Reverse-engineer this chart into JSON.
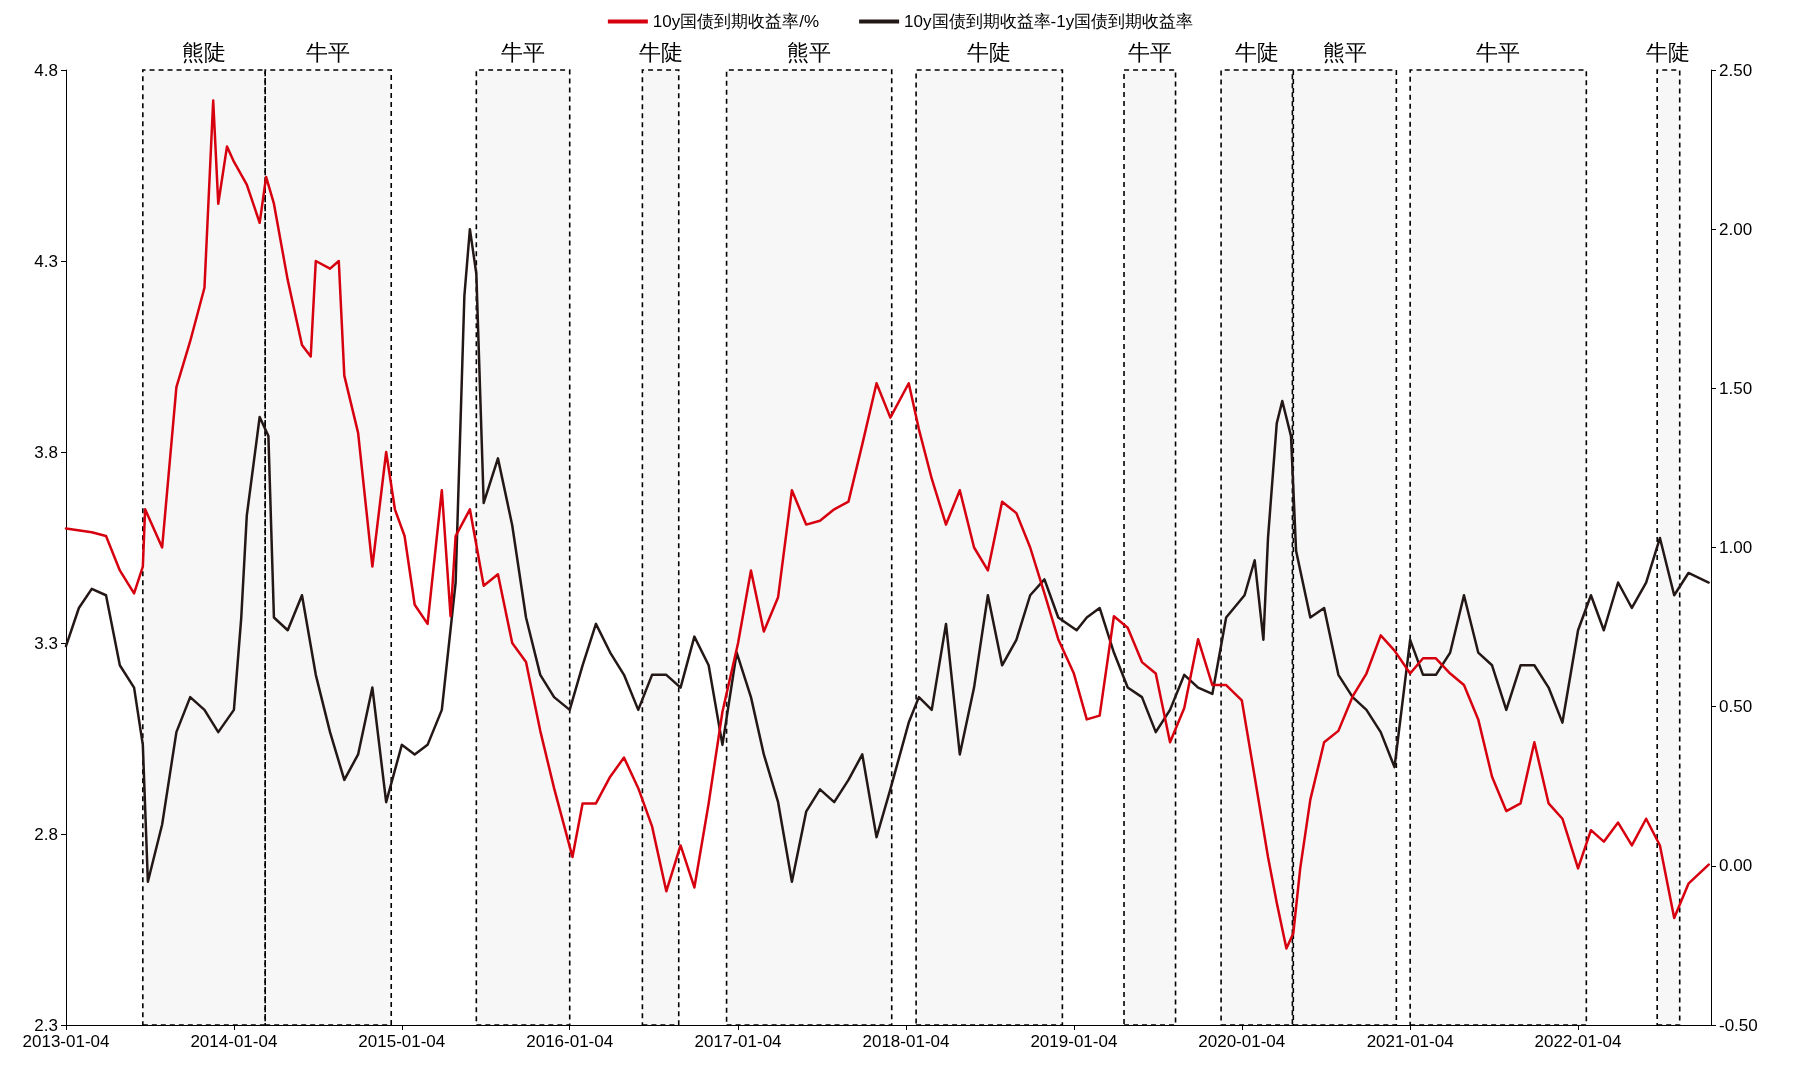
{
  "chart_data": {
    "type": "line",
    "legend": "top",
    "grid": false,
    "marker": "none",
    "line_style": "solid",
    "xlim": [
      "2013-01-04",
      "2022-10-20"
    ],
    "xticks": [
      "2013-01-04",
      "2014-01-04",
      "2015-01-04",
      "2016-01-04",
      "2017-01-04",
      "2018-01-04",
      "2019-01-04",
      "2020-01-04",
      "2021-01-04",
      "2022-01-04"
    ],
    "ylim": [
      2.3,
      4.8
    ],
    "yticks": [
      2.3,
      2.8,
      3.3,
      3.8,
      4.3,
      4.8
    ],
    "y2lim": [
      -0.5,
      2.5
    ],
    "y2ticks": [
      {
        "value": -0.5,
        "label": "-0.50"
      },
      {
        "value": 0,
        "label": "0.00"
      },
      {
        "value": 0.5,
        "label": "0.50"
      },
      {
        "value": 1,
        "label": "1.00"
      },
      {
        "value": 1.5,
        "label": "1.50"
      },
      {
        "value": 2,
        "label": "2.00"
      },
      {
        "value": 2.5,
        "label": "2.50"
      }
    ],
    "bands": [
      {
        "axis": "x",
        "from": "2013-06-20",
        "to": "2014-03-13",
        "label": "熊陡"
      },
      {
        "axis": "x",
        "from": "2014-03-13",
        "to": "2014-12-12",
        "label": "牛平"
      },
      {
        "axis": "x",
        "from": "2015-06-15",
        "to": "2016-01-04",
        "label": "牛平"
      },
      {
        "axis": "x",
        "from": "2016-06-10",
        "to": "2016-08-28",
        "label": "牛陡"
      },
      {
        "axis": "x",
        "from": "2016-12-10",
        "to": "2017-12-04",
        "label": "熊平"
      },
      {
        "axis": "x",
        "from": "2018-01-26",
        "to": "2018-12-10",
        "label": "牛陡"
      },
      {
        "axis": "x",
        "from": "2019-04-23",
        "to": "2019-08-13",
        "label": "牛平"
      },
      {
        "axis": "x",
        "from": "2019-11-20",
        "to": "2020-04-23",
        "label": "牛陡"
      },
      {
        "axis": "x",
        "from": "2020-04-25",
        "to": "2020-12-05",
        "label": "熊平"
      },
      {
        "axis": "x",
        "from": "2021-01-04",
        "to": "2022-01-22",
        "label": "牛平"
      },
      {
        "axis": "x",
        "from": "2022-06-25",
        "to": "2022-08-13",
        "label": "牛陡"
      }
    ],
    "series": [
      {
        "name": "10y国债到期收益率/%",
        "color": "#d7000f",
        "x": [
          "2013-01-04",
          "2013-03-01",
          "2013-04-01",
          "2013-05-01",
          "2013-06-01",
          "2013-06-20",
          "2013-06-25",
          "2013-08-01",
          "2013-09-01",
          "2013-10-01",
          "2013-11-01",
          "2013-11-20",
          "2013-12-01",
          "2013-12-20",
          "2014-01-04",
          "2014-02-01",
          "2014-03-01",
          "2014-03-15",
          "2014-04-01",
          "2014-05-01",
          "2014-06-01",
          "2014-06-20",
          "2014-07-01",
          "2014-08-01",
          "2014-08-20",
          "2014-09-01",
          "2014-10-01",
          "2014-11-01",
          "2014-12-01",
          "2014-12-20",
          "2015-01-10",
          "2015-02-01",
          "2015-03-01",
          "2015-04-01",
          "2015-04-20",
          "2015-05-01",
          "2015-06-01",
          "2015-07-01",
          "2015-08-01",
          "2015-09-01",
          "2015-10-01",
          "2015-11-01",
          "2015-12-01",
          "2016-01-10",
          "2016-02-01",
          "2016-03-01",
          "2016-04-01",
          "2016-05-01",
          "2016-06-01",
          "2016-07-01",
          "2016-08-01",
          "2016-09-01",
          "2016-10-01",
          "2016-11-01",
          "2016-12-01",
          "2017-01-04",
          "2017-02-01",
          "2017-03-01",
          "2017-04-01",
          "2017-05-01",
          "2017-06-01",
          "2017-07-01",
          "2017-08-01",
          "2017-09-01",
          "2017-10-01",
          "2017-11-01",
          "2017-12-01",
          "2018-01-10",
          "2018-02-01",
          "2018-03-01",
          "2018-04-01",
          "2018-05-01",
          "2018-06-01",
          "2018-07-01",
          "2018-08-01",
          "2018-09-01",
          "2018-10-01",
          "2018-11-01",
          "2018-12-01",
          "2019-01-04",
          "2019-02-01",
          "2019-03-01",
          "2019-04-01",
          "2019-05-01",
          "2019-06-01",
          "2019-07-01",
          "2019-08-01",
          "2019-09-01",
          "2019-10-01",
          "2019-11-01",
          "2019-12-01",
          "2020-01-04",
          "2020-02-01",
          "2020-03-01",
          "2020-03-20",
          "2020-04-10",
          "2020-04-25",
          "2020-05-10",
          "2020-06-01",
          "2020-07-01",
          "2020-08-01",
          "2020-09-01",
          "2020-10-01",
          "2020-11-01",
          "2020-12-01",
          "2021-01-04",
          "2021-02-01",
          "2021-03-01",
          "2021-04-01",
          "2021-05-01",
          "2021-06-01",
          "2021-07-01",
          "2021-08-01",
          "2021-09-01",
          "2021-10-01",
          "2021-11-01",
          "2021-12-01",
          "2022-01-04",
          "2022-02-01",
          "2022-03-01",
          "2022-04-01",
          "2022-05-01",
          "2022-06-01",
          "2022-07-01",
          "2022-08-01",
          "2022-09-01",
          "2022-10-15"
        ],
        "values": [
          3.6,
          3.59,
          3.58,
          3.49,
          3.43,
          3.5,
          3.65,
          3.55,
          3.97,
          4.09,
          4.23,
          4.72,
          4.45,
          4.6,
          4.56,
          4.5,
          4.4,
          4.52,
          4.45,
          4.25,
          4.08,
          4.05,
          4.3,
          4.28,
          4.3,
          4.0,
          3.85,
          3.5,
          3.8,
          3.65,
          3.58,
          3.4,
          3.35,
          3.7,
          3.37,
          3.58,
          3.65,
          3.45,
          3.48,
          3.3,
          3.25,
          3.07,
          2.92,
          2.74,
          2.88,
          2.88,
          2.95,
          3.0,
          2.92,
          2.82,
          2.65,
          2.77,
          2.66,
          2.88,
          3.12,
          3.3,
          3.49,
          3.33,
          3.42,
          3.7,
          3.61,
          3.62,
          3.65,
          3.67,
          3.82,
          3.98,
          3.89,
          3.98,
          3.86,
          3.73,
          3.61,
          3.7,
          3.55,
          3.49,
          3.67,
          3.64,
          3.55,
          3.43,
          3.31,
          3.22,
          3.1,
          3.11,
          3.37,
          3.34,
          3.25,
          3.22,
          3.04,
          3.13,
          3.31,
          3.19,
          3.19,
          3.15,
          2.95,
          2.74,
          2.62,
          2.5,
          2.54,
          2.71,
          2.89,
          3.04,
          3.07,
          3.16,
          3.22,
          3.32,
          3.28,
          3.22,
          3.26,
          3.26,
          3.22,
          3.19,
          3.1,
          2.95,
          2.86,
          2.88,
          3.04,
          2.88,
          2.84,
          2.71,
          2.81,
          2.78,
          2.83,
          2.77,
          2.84,
          2.77,
          2.58,
          2.67,
          2.72
        ]
      },
      {
        "name": "10y国债到期收益率-1y国债到期收益率",
        "color": "#231815",
        "axis": "y2",
        "x": [
          "2013-01-04",
          "2013-02-01",
          "2013-03-01",
          "2013-04-01",
          "2013-05-01",
          "2013-06-01",
          "2013-06-20",
          "2013-07-01",
          "2013-08-01",
          "2013-09-01",
          "2013-10-01",
          "2013-11-01",
          "2013-12-01",
          "2014-01-04",
          "2014-01-20",
          "2014-02-01",
          "2014-03-01",
          "2014-03-20",
          "2014-04-01",
          "2014-05-01",
          "2014-06-01",
          "2014-07-01",
          "2014-08-01",
          "2014-09-01",
          "2014-10-01",
          "2014-11-01",
          "2014-12-01",
          "2015-01-04",
          "2015-02-01",
          "2015-03-01",
          "2015-04-01",
          "2015-05-01",
          "2015-05-20",
          "2015-06-01",
          "2015-06-15",
          "2015-07-01",
          "2015-08-01",
          "2015-09-01",
          "2015-10-01",
          "2015-11-01",
          "2015-12-01",
          "2016-01-04",
          "2016-02-01",
          "2016-03-01",
          "2016-04-01",
          "2016-05-01",
          "2016-06-01",
          "2016-07-01",
          "2016-08-01",
          "2016-09-01",
          "2016-10-01",
          "2016-11-01",
          "2016-12-01",
          "2017-01-01",
          "2017-02-01",
          "2017-03-01",
          "2017-04-01",
          "2017-05-01",
          "2017-06-01",
          "2017-07-01",
          "2017-08-01",
          "2017-09-01",
          "2017-10-01",
          "2017-11-01",
          "2017-12-01",
          "2018-01-10",
          "2018-02-01",
          "2018-03-01",
          "2018-04-01",
          "2018-05-01",
          "2018-06-01",
          "2018-07-01",
          "2018-08-01",
          "2018-09-01",
          "2018-10-01",
          "2018-11-01",
          "2018-12-01",
          "2019-01-10",
          "2019-02-01",
          "2019-03-01",
          "2019-04-01",
          "2019-05-01",
          "2019-06-01",
          "2019-07-01",
          "2019-08-01",
          "2019-09-01",
          "2019-10-01",
          "2019-11-01",
          "2019-12-01",
          "2020-01-10",
          "2020-02-01",
          "2020-02-20",
          "2020-03-01",
          "2020-03-20",
          "2020-04-01",
          "2020-04-20",
          "2020-05-01",
          "2020-06-01",
          "2020-07-01",
          "2020-08-01",
          "2020-09-01",
          "2020-10-01",
          "2020-11-01",
          "2020-12-01",
          "2021-01-04",
          "2021-02-01",
          "2021-03-01",
          "2021-04-01",
          "2021-05-01",
          "2021-06-01",
          "2021-07-01",
          "2021-08-01",
          "2021-09-01",
          "2021-10-01",
          "2021-11-01",
          "2021-12-01",
          "2022-01-04",
          "2022-02-01",
          "2022-03-01",
          "2022-04-01",
          "2022-05-01",
          "2022-06-01",
          "2022-07-01",
          "2022-08-01",
          "2022-09-01",
          "2022-10-15"
        ],
        "values": [
          0.69,
          0.81,
          0.87,
          0.85,
          0.63,
          0.56,
          0.38,
          -0.05,
          0.13,
          0.42,
          0.53,
          0.49,
          0.42,
          0.49,
          0.78,
          1.1,
          1.41,
          1.35,
          0.78,
          0.74,
          0.85,
          0.6,
          0.42,
          0.27,
          0.35,
          0.56,
          0.2,
          0.38,
          0.35,
          0.38,
          0.49,
          0.89,
          1.79,
          2.0,
          1.86,
          1.14,
          1.28,
          1.07,
          0.78,
          0.6,
          0.53,
          0.49,
          0.63,
          0.76,
          0.67,
          0.6,
          0.49,
          0.6,
          0.6,
          0.56,
          0.72,
          0.63,
          0.38,
          0.67,
          0.53,
          0.35,
          0.2,
          -0.05,
          0.17,
          0.24,
          0.2,
          0.27,
          0.35,
          0.09,
          0.24,
          0.45,
          0.53,
          0.49,
          0.76,
          0.35,
          0.56,
          0.85,
          0.63,
          0.71,
          0.85,
          0.9,
          0.78,
          0.74,
          0.78,
          0.81,
          0.67,
          0.56,
          0.53,
          0.42,
          0.49,
          0.6,
          0.56,
          0.54,
          0.78,
          0.85,
          0.96,
          0.71,
          1.03,
          1.39,
          1.46,
          1.35,
          0.99,
          0.78,
          0.81,
          0.6,
          0.53,
          0.49,
          0.42,
          0.31,
          0.71,
          0.6,
          0.6,
          0.67,
          0.85,
          0.67,
          0.63,
          0.49,
          0.63,
          0.63,
          0.56,
          0.45,
          0.74,
          0.85,
          0.74,
          0.89,
          0.81,
          0.89,
          1.03,
          0.85,
          0.92,
          0.89
        ]
      }
    ]
  }
}
